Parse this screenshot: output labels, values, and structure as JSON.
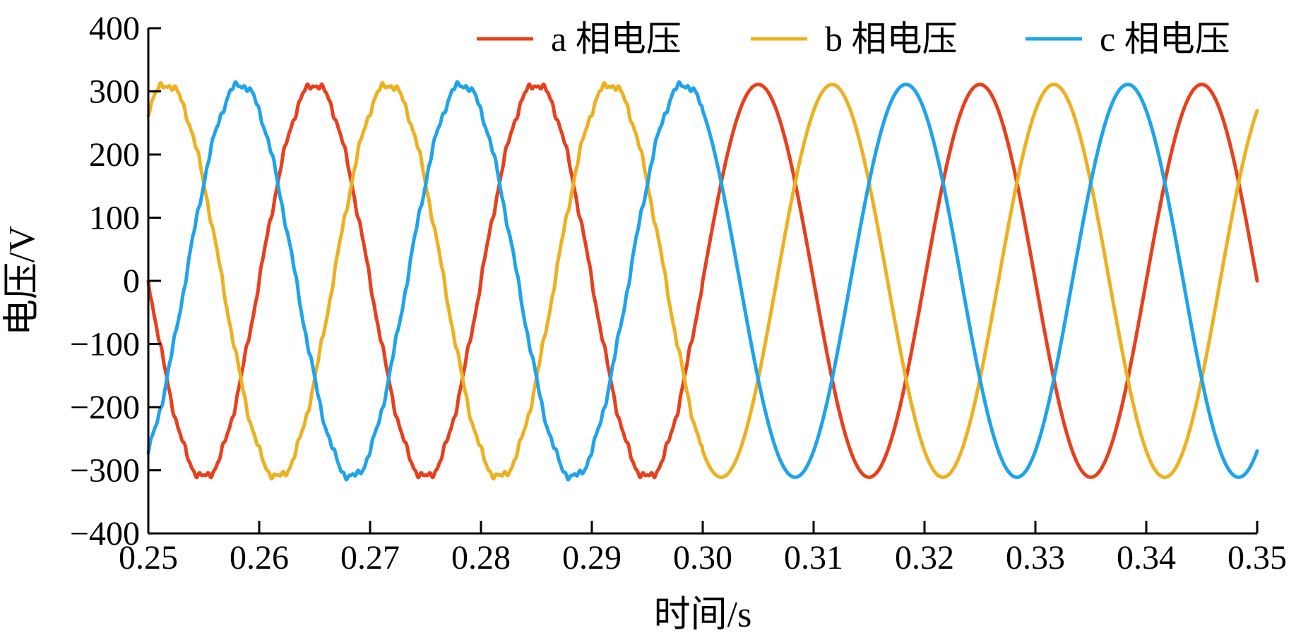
{
  "chart_data": {
    "type": "line",
    "title": "",
    "xlabel": "时间/s",
    "ylabel": "电压/V",
    "xlim": [
      0.25,
      0.35
    ],
    "ylim": [
      -400,
      400
    ],
    "xticks": [
      0.25,
      0.26,
      0.27,
      0.28,
      0.29,
      0.3,
      0.31,
      0.32,
      0.33,
      0.34,
      0.35
    ],
    "xtick_labels": [
      "0.25",
      "0.26",
      "0.27",
      "0.28",
      "0.29",
      "0.30",
      "0.31",
      "0.32",
      "0.33",
      "0.34",
      "0.35"
    ],
    "yticks": [
      400,
      300,
      200,
      100,
      0,
      -100,
      -200,
      -300,
      -400
    ],
    "ytick_labels": [
      "400",
      "300",
      "200",
      "100",
      "0",
      "−100",
      "−200",
      "−300",
      "−400"
    ],
    "grid": false,
    "legend_position": "top-right",
    "frequency_hz": 50,
    "amplitude_v": 311,
    "series": [
      {
        "name": "a 相电压",
        "color": "#E8401C",
        "amplitude": 311,
        "phase_deg": 0
      },
      {
        "name": "b 相电压",
        "color": "#EDB120",
        "amplitude": 311,
        "phase_deg": -120
      },
      {
        "name": "c 相电压",
        "color": "#1FA3EC",
        "amplitude": 311,
        "phase_deg": 120
      }
    ],
    "noisy_until_x": 0.3
  }
}
